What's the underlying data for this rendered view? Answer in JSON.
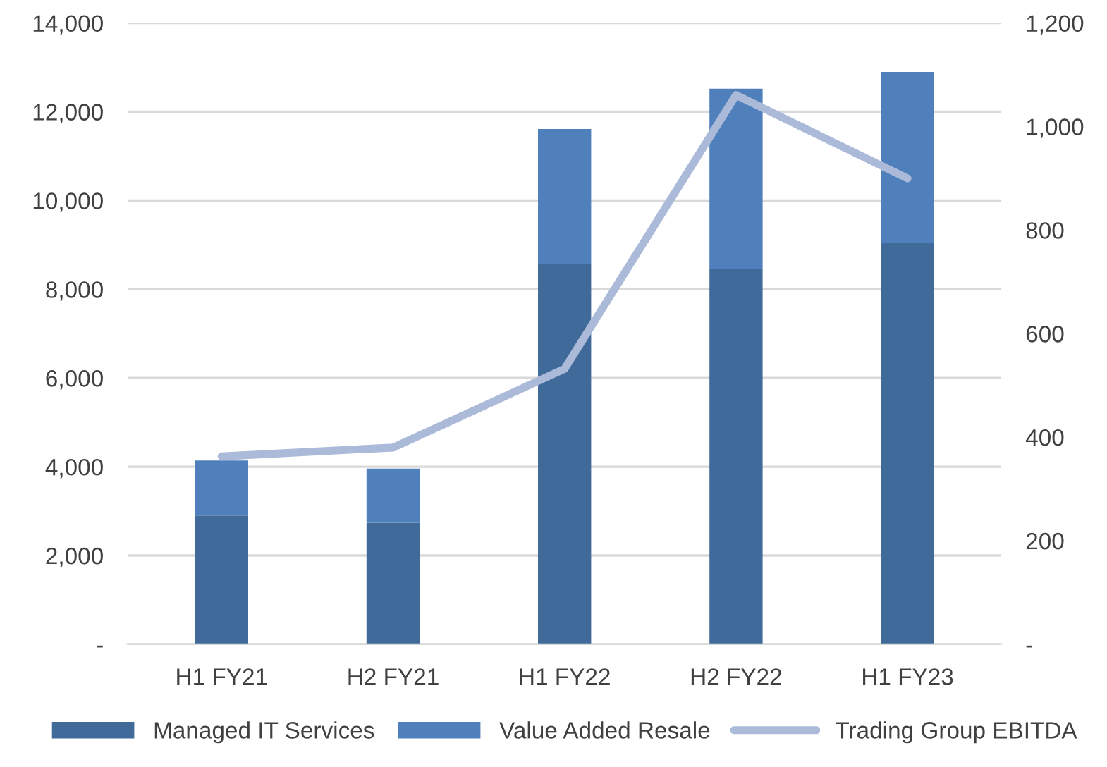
{
  "chart_data": {
    "type": "bar",
    "stacked": true,
    "categories": [
      "H1 FY21",
      "H2 FY21",
      "H1 FY22",
      "H2 FY22",
      "H1 FY23"
    ],
    "series": [
      {
        "name": "Managed IT Services",
        "color": "#3f6a9a",
        "values": [
          2900,
          2740,
          8570,
          8460,
          9050
        ]
      },
      {
        "name": "Value Added Resale",
        "color": "#4f80bc",
        "values": [
          1240,
          1220,
          3040,
          4060,
          3850
        ]
      },
      {
        "name": "Trading Group EBITDA",
        "color": "#abbad9",
        "type": "line",
        "axis": "y2",
        "values": [
          363,
          380,
          532,
          1061,
          900
        ]
      }
    ],
    "ylim": [
      0,
      14000
    ],
    "yticks": [
      {
        "value": 0,
        "label": "-"
      },
      {
        "value": 2000,
        "label": "2,000"
      },
      {
        "value": 4000,
        "label": "4,000"
      },
      {
        "value": 6000,
        "label": "6,000"
      },
      {
        "value": 8000,
        "label": "8,000"
      },
      {
        "value": 10000,
        "label": "10,000"
      },
      {
        "value": 12000,
        "label": "12,000"
      },
      {
        "value": 14000,
        "label": "14,000"
      }
    ],
    "y2lim": [
      0,
      1200
    ],
    "y2ticks": [
      {
        "value": 0,
        "label": "-"
      },
      {
        "value": 200,
        "label": "200"
      },
      {
        "value": 400,
        "label": "400"
      },
      {
        "value": 600,
        "label": "600"
      },
      {
        "value": 800,
        "label": "800"
      },
      {
        "value": 1000,
        "label": "1,000"
      },
      {
        "value": 1200,
        "label": "1,200"
      }
    ],
    "grid": "y",
    "legend": "bottom",
    "marker": "none",
    "line_style": "solid"
  }
}
